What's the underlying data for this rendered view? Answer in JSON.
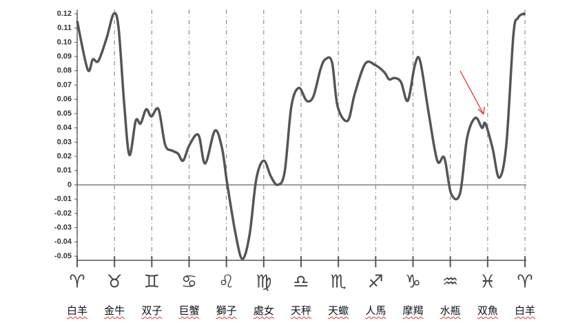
{
  "chart_data": {
    "type": "line",
    "x": [
      0,
      0.28,
      0.42,
      0.57,
      0.79,
      0.98,
      1.11,
      1.26,
      1.4,
      1.57,
      1.7,
      1.85,
      1.99,
      2.18,
      2.36,
      2.55,
      2.7,
      2.84,
      3.01,
      3.25,
      3.43,
      3.69,
      3.88,
      4.02,
      4.25,
      4.43,
      4.62,
      4.8,
      5.0,
      5.19,
      5.37,
      5.56,
      5.74,
      5.94,
      6.15,
      6.33,
      6.52,
      6.65,
      6.83,
      6.98,
      7.25,
      7.44,
      7.72,
      7.99,
      8.23,
      8.36,
      8.51,
      8.68,
      8.86,
      9.05,
      9.19,
      9.41,
      9.65,
      9.84,
      10.02,
      10.26,
      10.45,
      10.67,
      10.85,
      10.94,
      11.13,
      11.31,
      11.5,
      11.69,
      11.81,
      11.96,
      12.0
    ],
    "values": [
      0.115,
      0.081,
      0.088,
      0.087,
      0.103,
      0.12,
      0.11,
      0.057,
      0.021,
      0.045,
      0.043,
      0.053,
      0.048,
      0.053,
      0.028,
      0.024,
      0.022,
      0.017,
      0.028,
      0.035,
      0.015,
      0.038,
      0.026,
      0.001,
      -0.035,
      -0.052,
      -0.035,
      0.004,
      0.017,
      0.006,
      0.0,
      0.009,
      0.055,
      0.068,
      0.059,
      0.062,
      0.081,
      0.088,
      0.086,
      0.055,
      0.045,
      0.064,
      0.085,
      0.084,
      0.079,
      0.074,
      0.075,
      0.072,
      0.059,
      0.084,
      0.087,
      0.052,
      0.017,
      0.019,
      -0.006,
      -0.006,
      0.033,
      0.047,
      0.04,
      0.043,
      0.026,
      0.005,
      0.028,
      0.105,
      0.117,
      0.12,
      0.119
    ],
    "color": "#555555",
    "xlim": [
      0,
      12
    ],
    "xticks": [
      {
        "value": 0,
        "label": "白羊"
      },
      {
        "value": 1,
        "label": "金牛"
      },
      {
        "value": 2,
        "label": "双子"
      },
      {
        "value": 3,
        "label": "巨蟹"
      },
      {
        "value": 4,
        "label": "獅子"
      },
      {
        "value": 5,
        "label": "處女"
      },
      {
        "value": 6,
        "label": "天秤"
      },
      {
        "value": 7,
        "label": "天蠍"
      },
      {
        "value": 8,
        "label": "人馬"
      },
      {
        "value": 9,
        "label": "摩羯"
      },
      {
        "value": 10,
        "label": "水瓶"
      },
      {
        "value": 11,
        "label": "双魚"
      },
      {
        "value": 12,
        "label": "白羊"
      }
    ],
    "xtick_symbols": [
      "♈",
      "♉",
      "♊",
      "♋",
      "♌",
      "♍",
      "♎",
      "♏",
      "♐",
      "♑",
      "♒",
      "♓",
      "♈"
    ],
    "ylim": [
      -0.052,
      0.122
    ],
    "yticks": [
      0.12,
      0.11,
      {
        "value": 0.1,
        "label": "0.10"
      },
      0.09,
      0.08,
      0.07,
      0.06,
      0.05,
      0.04,
      0.03,
      0.02,
      0.01,
      0,
      -0.01,
      -0.02,
      -0.03,
      -0.04,
      -0.05
    ],
    "zero_line": true,
    "xgrid": "dashed"
  }
}
